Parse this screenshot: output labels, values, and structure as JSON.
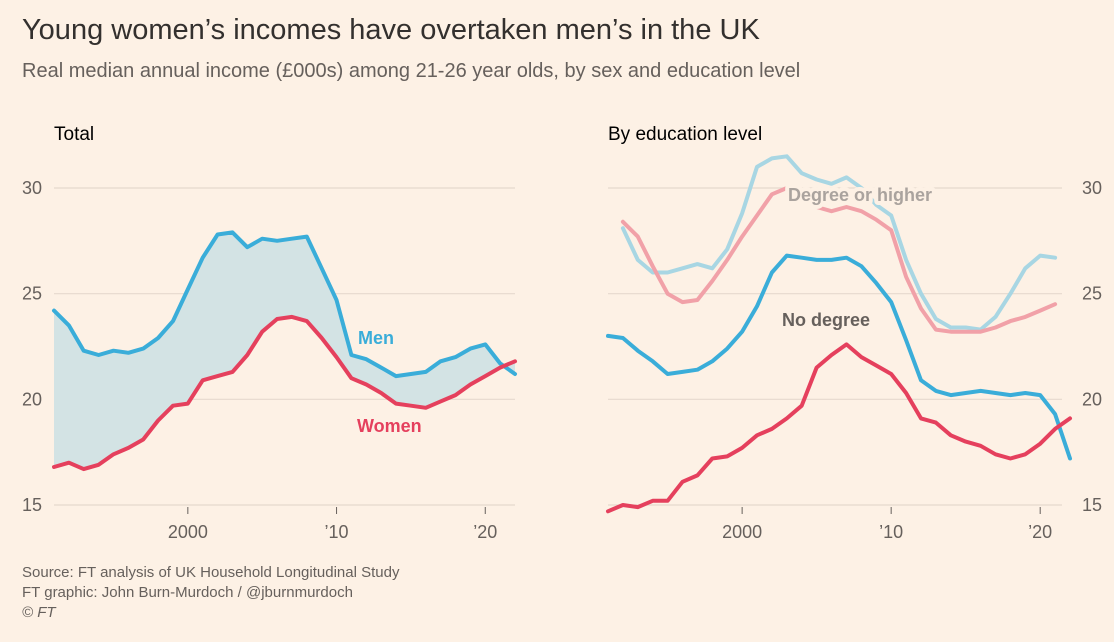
{
  "title": "Young women’s incomes have overtaken men’s in the UK",
  "subtitle": "Real median annual income (£000s) among 21-26 year olds, by sex and education level",
  "footer": {
    "source": "Source: FT analysis of UK Household Longitudinal Study",
    "graphic": "FT graphic: John Burn-Murdoch / @jburnmurdoch",
    "copyright": "© FT"
  },
  "colors": {
    "background": "#fdf1e5",
    "men": "#3aadd9",
    "women": "#e5405d",
    "men_light": "#a8d6e3",
    "women_light": "#f1a1a8",
    "gap_fill": "#d3e3e4",
    "grid": "#e6d9ce"
  },
  "chart_data": [
    {
      "type": "line",
      "title": "Total",
      "ylim": [
        15,
        30
      ],
      "xlim": [
        1991,
        2022
      ],
      "yticks": [
        15,
        20,
        25,
        30
      ],
      "xticks": [
        {
          "value": 2000,
          "label": "2000"
        },
        {
          "value": 2010,
          "label": "’10"
        },
        {
          "value": 2020,
          "label": "’20"
        }
      ],
      "fill_between": [
        "Men",
        "Women"
      ],
      "series": [
        {
          "name": "Men",
          "color": "#3aadd9",
          "x": [
            1991,
            1992,
            1993,
            1994,
            1995,
            1996,
            1997,
            1998,
            1999,
            2000,
            2001,
            2002,
            2003,
            2004,
            2005,
            2006,
            2007,
            2008,
            2009,
            2010,
            2011,
            2012,
            2013,
            2014,
            2015,
            2016,
            2017,
            2018,
            2019,
            2020,
            2021,
            2022
          ],
          "values": [
            24.2,
            23.5,
            22.3,
            22.1,
            22.3,
            22.2,
            22.4,
            22.9,
            23.7,
            25.2,
            26.7,
            27.8,
            27.9,
            27.2,
            27.6,
            27.5,
            27.6,
            27.7,
            26.2,
            24.7,
            22.1,
            21.9,
            21.5,
            21.1,
            21.2,
            21.3,
            21.8,
            22.0,
            22.4,
            22.6,
            21.7,
            21.2
          ]
        },
        {
          "name": "Women",
          "color": "#e5405d",
          "x": [
            1991,
            1992,
            1993,
            1994,
            1995,
            1996,
            1997,
            1998,
            1999,
            2000,
            2001,
            2002,
            2003,
            2004,
            2005,
            2006,
            2007,
            2008,
            2009,
            2010,
            2011,
            2012,
            2013,
            2014,
            2015,
            2016,
            2017,
            2018,
            2019,
            2020,
            2021,
            2022
          ],
          "values": [
            16.8,
            17.0,
            16.7,
            16.9,
            17.4,
            17.7,
            18.1,
            19.0,
            19.7,
            19.8,
            20.9,
            21.1,
            21.3,
            22.1,
            23.2,
            23.8,
            23.9,
            23.7,
            22.9,
            22.0,
            21.0,
            20.7,
            20.3,
            19.8,
            19.7,
            19.6,
            19.9,
            20.2,
            20.7,
            21.1,
            21.5,
            21.8
          ]
        }
      ]
    },
    {
      "type": "line",
      "title": "By education level",
      "ylim": [
        15,
        30
      ],
      "xlim": [
        1991,
        2022
      ],
      "yticks": [
        15,
        20,
        25,
        30
      ],
      "yaxis_side": "right",
      "xticks": [
        {
          "value": 2000,
          "label": "2000"
        },
        {
          "value": 2010,
          "label": "’10"
        },
        {
          "value": 2020,
          "label": "’20"
        }
      ],
      "annotations": [
        "Degree or higher",
        "No degree"
      ],
      "series": [
        {
          "name": "Men – Degree or higher",
          "color": "#a8d6e3",
          "x": [
            1992,
            1993,
            1994,
            1995,
            1996,
            1997,
            1998,
            1999,
            2000,
            2001,
            2002,
            2003,
            2004,
            2005,
            2006,
            2007,
            2008,
            2009,
            2010,
            2011,
            2012,
            2013,
            2014,
            2015,
            2016,
            2017,
            2018,
            2019,
            2020,
            2021
          ],
          "values": [
            28.1,
            26.6,
            26.0,
            26.0,
            26.2,
            26.4,
            26.2,
            27.1,
            28.8,
            31.0,
            31.4,
            31.5,
            30.7,
            30.4,
            30.2,
            30.5,
            30.0,
            29.2,
            28.7,
            26.6,
            25.0,
            23.8,
            23.4,
            23.4,
            23.3,
            23.9,
            25.0,
            26.2,
            26.8,
            26.7
          ]
        },
        {
          "name": "Women – Degree or higher",
          "color": "#f1a1a8",
          "x": [
            1992,
            1993,
            1994,
            1995,
            1996,
            1997,
            1998,
            1999,
            2000,
            2001,
            2002,
            2003,
            2004,
            2005,
            2006,
            2007,
            2008,
            2009,
            2010,
            2011,
            2012,
            2013,
            2014,
            2015,
            2016,
            2017,
            2018,
            2019,
            2020,
            2021
          ],
          "values": [
            28.4,
            27.7,
            26.3,
            25.0,
            24.6,
            24.7,
            25.6,
            26.6,
            27.7,
            28.7,
            29.7,
            30.0,
            29.7,
            29.1,
            28.9,
            29.1,
            28.9,
            28.5,
            28.0,
            25.8,
            24.3,
            23.3,
            23.2,
            23.2,
            23.2,
            23.4,
            23.7,
            23.9,
            24.2,
            24.5
          ]
        },
        {
          "name": "Men – No degree",
          "color": "#3aadd9",
          "x": [
            1991,
            1992,
            1993,
            1994,
            1995,
            1996,
            1997,
            1998,
            1999,
            2000,
            2001,
            2002,
            2003,
            2004,
            2005,
            2006,
            2007,
            2008,
            2009,
            2010,
            2011,
            2012,
            2013,
            2014,
            2015,
            2016,
            2017,
            2018,
            2019,
            2020,
            2021,
            2022
          ],
          "values": [
            23.0,
            22.9,
            22.3,
            21.8,
            21.2,
            21.3,
            21.4,
            21.8,
            22.4,
            23.2,
            24.4,
            26.0,
            26.8,
            26.7,
            26.6,
            26.6,
            26.7,
            26.3,
            25.5,
            24.6,
            22.8,
            20.9,
            20.4,
            20.2,
            20.3,
            20.4,
            20.3,
            20.2,
            20.3,
            20.2,
            19.3,
            17.2
          ]
        },
        {
          "name": "Women – No degree",
          "color": "#e5405d",
          "x": [
            1991,
            1992,
            1993,
            1994,
            1995,
            1996,
            1997,
            1998,
            1999,
            2000,
            2001,
            2002,
            2003,
            2004,
            2005,
            2006,
            2007,
            2008,
            2009,
            2010,
            2011,
            2012,
            2013,
            2014,
            2015,
            2016,
            2017,
            2018,
            2019,
            2020,
            2021,
            2022
          ],
          "values": [
            14.7,
            15.0,
            14.9,
            15.2,
            15.2,
            16.1,
            16.4,
            17.2,
            17.3,
            17.7,
            18.3,
            18.6,
            19.1,
            19.7,
            21.5,
            22.1,
            22.6,
            22.0,
            21.6,
            21.2,
            20.3,
            19.1,
            18.9,
            18.3,
            18.0,
            17.8,
            17.4,
            17.2,
            17.4,
            17.9,
            18.6,
            19.1
          ]
        }
      ]
    }
  ],
  "labels": {
    "men": "Men",
    "women": "Women",
    "degree": "Degree or higher",
    "no_degree": "No degree"
  }
}
